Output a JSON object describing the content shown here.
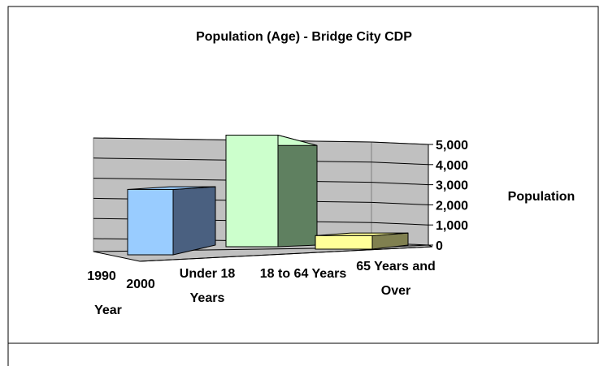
{
  "chart_data": {
    "type": "bar3d",
    "title": "Population (Age) - Bridge City CDP",
    "y_label": "Population",
    "depth_label": "Year",
    "depth_categories": [
      "1990",
      "2000"
    ],
    "categories": [
      "Under 18 Years",
      "18 to 64 Years",
      "65 Years and Over"
    ],
    "values": [
      2900,
      4950,
      600
    ],
    "colors": [
      "#99ccff",
      "#ccffcc",
      "#ffff99"
    ],
    "side_colors": [
      "#4a6080",
      "#5f8060",
      "#808050"
    ],
    "ylim": [
      0,
      5000
    ],
    "yticks": [
      0,
      {
        "value": 1000,
        "label": "1,000"
      },
      {
        "value": 2000,
        "label": "2,000"
      },
      {
        "value": 3000,
        "label": "3,000"
      },
      {
        "value": 4000,
        "label": "4,000"
      },
      {
        "value": 5000,
        "label": "5,000"
      }
    ],
    "grid": true
  }
}
